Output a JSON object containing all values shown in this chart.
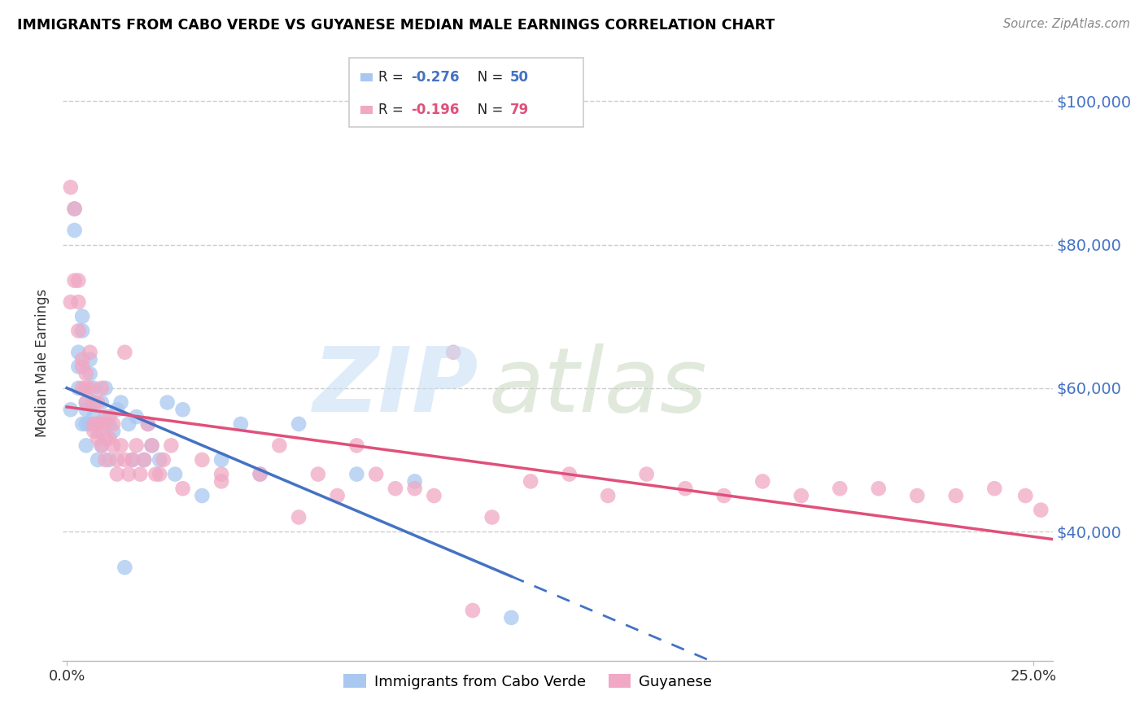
{
  "title": "IMMIGRANTS FROM CABO VERDE VS GUYANESE MEDIAN MALE EARNINGS CORRELATION CHART",
  "source": "Source: ZipAtlas.com",
  "ylabel": "Median Male Earnings",
  "ytick_labels": [
    "$40,000",
    "$60,000",
    "$80,000",
    "$100,000"
  ],
  "ytick_values": [
    40000,
    60000,
    80000,
    100000
  ],
  "ymin": 22000,
  "ymax": 105000,
  "xmin": -0.001,
  "xmax": 0.255,
  "series1_color": "#a8c8f0",
  "series2_color": "#f0a8c4",
  "trendline1_color": "#4472c4",
  "trendline2_color": "#e0507a",
  "series1_name": "Immigrants from Cabo Verde",
  "series2_name": "Guyanese",
  "cabo_x": [
    0.001,
    0.002,
    0.002,
    0.003,
    0.003,
    0.003,
    0.004,
    0.004,
    0.004,
    0.005,
    0.005,
    0.005,
    0.005,
    0.006,
    0.006,
    0.006,
    0.007,
    0.007,
    0.007,
    0.008,
    0.008,
    0.008,
    0.009,
    0.009,
    0.01,
    0.01,
    0.011,
    0.011,
    0.012,
    0.013,
    0.014,
    0.015,
    0.016,
    0.017,
    0.018,
    0.02,
    0.021,
    0.022,
    0.024,
    0.026,
    0.028,
    0.03,
    0.035,
    0.04,
    0.045,
    0.05,
    0.06,
    0.075,
    0.09,
    0.115
  ],
  "cabo_y": [
    57000,
    85000,
    82000,
    65000,
    63000,
    60000,
    70000,
    68000,
    55000,
    58000,
    57000,
    55000,
    52000,
    64000,
    62000,
    55000,
    60000,
    58000,
    56000,
    55000,
    54000,
    50000,
    58000,
    52000,
    60000,
    56000,
    55000,
    50000,
    54000,
    57000,
    58000,
    35000,
    55000,
    50000,
    56000,
    50000,
    55000,
    52000,
    50000,
    58000,
    48000,
    57000,
    45000,
    50000,
    55000,
    48000,
    55000,
    48000,
    47000,
    28000
  ],
  "guy_x": [
    0.001,
    0.001,
    0.002,
    0.002,
    0.003,
    0.003,
    0.003,
    0.004,
    0.004,
    0.004,
    0.005,
    0.005,
    0.005,
    0.006,
    0.006,
    0.007,
    0.007,
    0.007,
    0.008,
    0.008,
    0.008,
    0.009,
    0.009,
    0.009,
    0.01,
    0.01,
    0.01,
    0.011,
    0.011,
    0.012,
    0.012,
    0.013,
    0.013,
    0.014,
    0.015,
    0.015,
    0.016,
    0.017,
    0.018,
    0.019,
    0.02,
    0.021,
    0.022,
    0.023,
    0.024,
    0.025,
    0.027,
    0.03,
    0.035,
    0.04,
    0.05,
    0.06,
    0.07,
    0.08,
    0.09,
    0.1,
    0.11,
    0.12,
    0.13,
    0.14,
    0.15,
    0.16,
    0.17,
    0.18,
    0.19,
    0.2,
    0.21,
    0.22,
    0.23,
    0.24,
    0.248,
    0.252,
    0.04,
    0.055,
    0.065,
    0.075,
    0.085,
    0.095,
    0.105
  ],
  "guy_y": [
    88000,
    72000,
    75000,
    85000,
    75000,
    72000,
    68000,
    64000,
    63000,
    60000,
    62000,
    60000,
    58000,
    65000,
    60000,
    55000,
    54000,
    58000,
    55000,
    53000,
    58000,
    60000,
    55000,
    52000,
    55000,
    53000,
    50000,
    56000,
    53000,
    55000,
    52000,
    50000,
    48000,
    52000,
    50000,
    65000,
    48000,
    50000,
    52000,
    48000,
    50000,
    55000,
    52000,
    48000,
    48000,
    50000,
    52000,
    46000,
    50000,
    48000,
    48000,
    42000,
    45000,
    48000,
    46000,
    65000,
    42000,
    47000,
    48000,
    45000,
    48000,
    46000,
    45000,
    47000,
    45000,
    46000,
    46000,
    45000,
    45000,
    46000,
    45000,
    43000,
    47000,
    52000,
    48000,
    52000,
    46000,
    45000,
    29000
  ]
}
